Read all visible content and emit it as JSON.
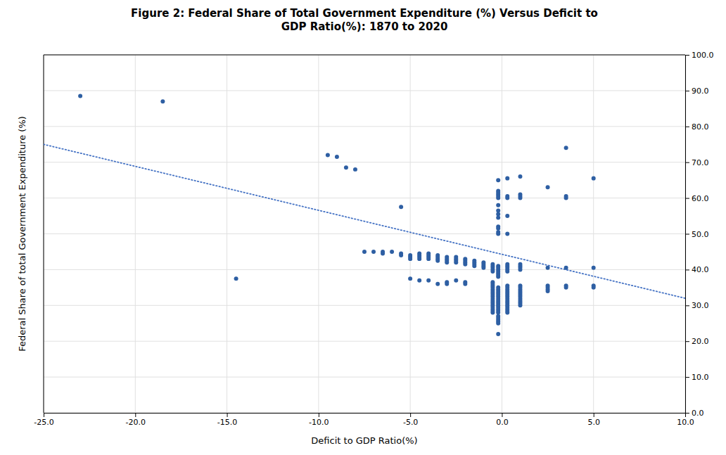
{
  "chart_data": {
    "type": "scatter",
    "title": "Figure 2: Federal Share of Total Government Expenditure (%) Versus Deficit to\nGDP Ratio(%): 1870 to 2020",
    "x_label": "Deficit to GDP Ratio(%)",
    "y_label": "Federal Share of total Government Expenditure (%)",
    "xlim": [
      -25.0,
      10.0
    ],
    "ylim": [
      0.0,
      100.0
    ],
    "xticks": [
      {
        "value": -25.0,
        "label": "-25.0"
      },
      {
        "value": -20.0,
        "label": "-20.0"
      },
      {
        "value": -15.0,
        "label": "-15.0"
      },
      {
        "value": -10.0,
        "label": "-10.0"
      },
      {
        "value": -5.0,
        "label": "-5.0"
      },
      {
        "value": 0.0,
        "label": "0.0"
      },
      {
        "value": 5.0,
        "label": "5.0"
      },
      {
        "value": 10.0,
        "label": "10.0"
      }
    ],
    "yticks": [
      {
        "value": 0.0,
        "label": "0.0"
      },
      {
        "value": 10.0,
        "label": "10.0"
      },
      {
        "value": 20.0,
        "label": "20.0"
      },
      {
        "value": 30.0,
        "label": "30.0"
      },
      {
        "value": 40.0,
        "label": "40.0"
      },
      {
        "value": 50.0,
        "label": "50.0"
      },
      {
        "value": 60.0,
        "label": "60.0"
      },
      {
        "value": 70.0,
        "label": "70.0"
      },
      {
        "value": 80.0,
        "label": "80.0"
      },
      {
        "value": 90.0,
        "label": "90.0"
      },
      {
        "value": 100.0,
        "label": "100.0"
      }
    ],
    "grid": true,
    "series": [
      {
        "type": "scatter",
        "marker": "circle",
        "color": "#2E5FA3",
        "x": [
          -23.0,
          -18.5,
          -14.5,
          -9.5,
          -9.0,
          -8.5,
          -8.0,
          -5.5,
          -7.5,
          -7.0,
          -6.5,
          -6.5,
          -6.0,
          -5.5,
          -5.5,
          -5.0,
          -5.0,
          -5.0,
          -4.5,
          -4.5,
          -4.5,
          -4.5,
          -4.0,
          -4.0,
          -4.0,
          -4.0,
          -3.5,
          -3.5,
          -3.5,
          -3.5,
          -3.0,
          -3.0,
          -3.0,
          -3.0,
          -2.5,
          -2.5,
          -2.5,
          -2.5,
          -2.0,
          -2.0,
          -2.0,
          -2.0,
          -1.5,
          -1.5,
          -1.5,
          -1.5,
          -1.0,
          -1.0,
          -1.0,
          -1.0,
          -0.5,
          -0.5,
          -0.5,
          -0.5,
          -0.5,
          -0.5,
          -0.5,
          -0.5,
          -0.5,
          -0.5,
          -0.5,
          -0.5,
          -0.5,
          -0.5,
          -0.5,
          -0.5,
          -0.5,
          -0.5,
          -0.5,
          -0.5,
          -0.5,
          -0.5,
          -0.5,
          -2.5,
          -2.0,
          -2.0,
          -3.0,
          -3.0,
          -3.5,
          -4.0,
          -4.5,
          -5.0,
          -0.2,
          -0.2,
          -0.2,
          -0.2,
          -0.2,
          -0.2,
          -0.2,
          -0.2,
          -0.2,
          -0.2,
          -0.2,
          -0.2,
          -0.2,
          -0.2,
          -0.2,
          -0.2,
          -0.2,
          -0.2,
          -0.2,
          -0.2,
          -0.2,
          -0.2,
          -0.2,
          -0.2,
          -0.2,
          -0.2,
          -0.2,
          -0.2,
          -0.2,
          -0.2,
          -0.2,
          -0.2,
          -0.2,
          -0.2,
          -0.2,
          -0.2,
          -0.2,
          -0.2,
          -0.2,
          -0.2,
          -0.2,
          -0.2,
          0.3,
          0.3,
          0.3,
          0.3,
          0.3,
          0.3,
          0.3,
          0.3,
          0.3,
          0.3,
          0.3,
          0.3,
          0.3,
          0.3,
          0.3,
          0.3,
          0.3,
          0.3,
          0.3,
          0.3,
          0.3,
          0.3,
          0.3,
          0.3,
          0.3,
          0.3,
          1.0,
          1.0,
          1.0,
          1.0,
          1.0,
          1.0,
          1.0,
          1.0,
          1.0,
          1.0,
          1.0,
          1.0,
          1.0,
          1.0,
          1.0,
          1.0,
          1.0,
          1.0,
          1.0,
          1.0,
          2.5,
          2.5,
          2.5,
          2.5,
          2.5,
          2.5,
          3.5,
          3.5,
          3.5,
          3.5,
          3.5,
          3.5,
          5.0,
          5.0,
          5.0,
          5.0
        ],
        "values": [
          88.5,
          87.0,
          37.5,
          72.0,
          71.5,
          68.5,
          68.0,
          57.5,
          45.0,
          45.0,
          45.0,
          44.5,
          45.0,
          44.5,
          44.0,
          44.0,
          43.5,
          43.0,
          44.5,
          44.0,
          43.5,
          43.0,
          44.5,
          44.0,
          43.5,
          43.0,
          44.0,
          43.5,
          43.0,
          42.5,
          43.5,
          43.0,
          42.5,
          42.0,
          43.5,
          43.0,
          42.5,
          42.0,
          43.0,
          42.5,
          42.0,
          41.5,
          42.5,
          42.0,
          41.5,
          41.0,
          42.0,
          41.5,
          41.0,
          40.5,
          41.5,
          41.0,
          40.5,
          40.0,
          39.5,
          36.5,
          36.0,
          35.5,
          35.0,
          34.5,
          34.0,
          33.5,
          33.0,
          32.5,
          32.0,
          31.5,
          31.0,
          30.5,
          30.0,
          29.5,
          29.0,
          28.5,
          28.0,
          37.0,
          36.5,
          36.0,
          36.5,
          36.0,
          36.0,
          37.0,
          37.0,
          37.5,
          65.0,
          62.0,
          61.5,
          61.0,
          60.5,
          60.0,
          58.0,
          56.5,
          55.5,
          54.5,
          52.0,
          51.5,
          50.5,
          50.0,
          41.0,
          40.5,
          40.0,
          39.5,
          39.0,
          38.5,
          38.0,
          35.0,
          34.5,
          34.0,
          33.5,
          33.0,
          32.5,
          32.0,
          31.5,
          31.0,
          30.5,
          30.0,
          29.5,
          29.0,
          28.5,
          28.0,
          27.0,
          26.5,
          26.0,
          25.5,
          25.0,
          22.0,
          65.5,
          60.5,
          60.0,
          55.0,
          50.0,
          41.5,
          41.0,
          40.5,
          40.0,
          39.5,
          35.5,
          35.0,
          34.5,
          34.0,
          33.5,
          33.0,
          32.5,
          32.0,
          31.5,
          31.0,
          30.5,
          30.0,
          29.5,
          29.0,
          28.5,
          28.0,
          66.0,
          61.0,
          60.5,
          60.0,
          41.5,
          41.0,
          40.5,
          40.0,
          35.5,
          35.0,
          34.5,
          34.0,
          33.5,
          33.0,
          32.5,
          32.0,
          31.5,
          31.0,
          30.5,
          30.0,
          63.0,
          40.5,
          35.5,
          35.0,
          34.5,
          34.0,
          74.0,
          60.5,
          60.0,
          40.5,
          35.5,
          35.0,
          65.5,
          40.5,
          35.5,
          35.0
        ]
      },
      {
        "type": "line",
        "line_style": "dotted",
        "color": "#4472C4",
        "x": [
          -25.0,
          10.0
        ],
        "values": [
          75.0,
          32.0
        ]
      }
    ]
  }
}
